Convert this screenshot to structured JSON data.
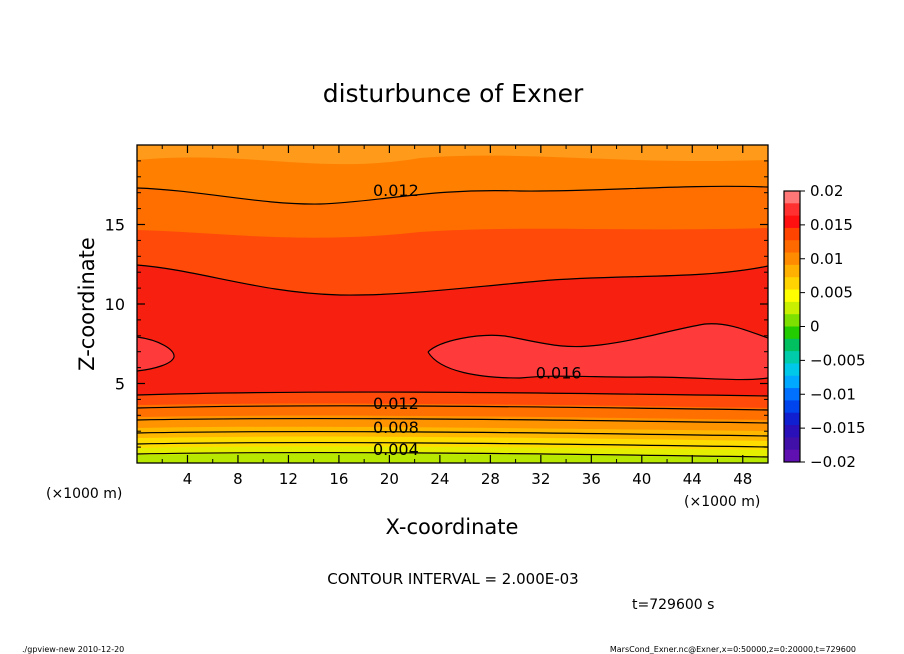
{
  "chart_data": {
    "type": "contour",
    "title": "disturbunce of Exner",
    "xlabel": "X-coordinate",
    "ylabel": "Z-coordinate",
    "x_unit": "(×1000 m)",
    "y_unit": "(×1000 m)",
    "xlim": [
      0,
      50
    ],
    "ylim": [
      0,
      20
    ],
    "x_ticks": [
      4,
      8,
      12,
      16,
      20,
      24,
      28,
      32,
      36,
      40,
      44,
      48
    ],
    "y_ticks": [
      5,
      10,
      15
    ],
    "contour_interval": "CONTOUR INTERVAL = 2.000E-03",
    "time_label": "t=729600 s",
    "colorbar": {
      "ticks": [
        "0.02",
        "0.015",
        "0.01",
        "0.005",
        "0",
        "−0.005",
        "−0.01",
        "−0.015",
        "−0.02"
      ]
    },
    "contour_labels": [
      {
        "text": "0.012",
        "x": 18.7,
        "z": 16.8
      },
      {
        "text": "0.016",
        "x": 31.6,
        "z": 5.3
      },
      {
        "text": "0.012",
        "x": 18.7,
        "z": 3.4
      },
      {
        "text": "0.008",
        "x": 18.7,
        "z": 1.9
      },
      {
        "text": "0.004",
        "x": 18.7,
        "z": 0.5
      }
    ]
  },
  "footer": {
    "left": "./gpview-new  2010-12-20",
    "right": "MarsCond_Exner.nc@Exner,x=0:50000,z=0:20000,t=729600"
  }
}
